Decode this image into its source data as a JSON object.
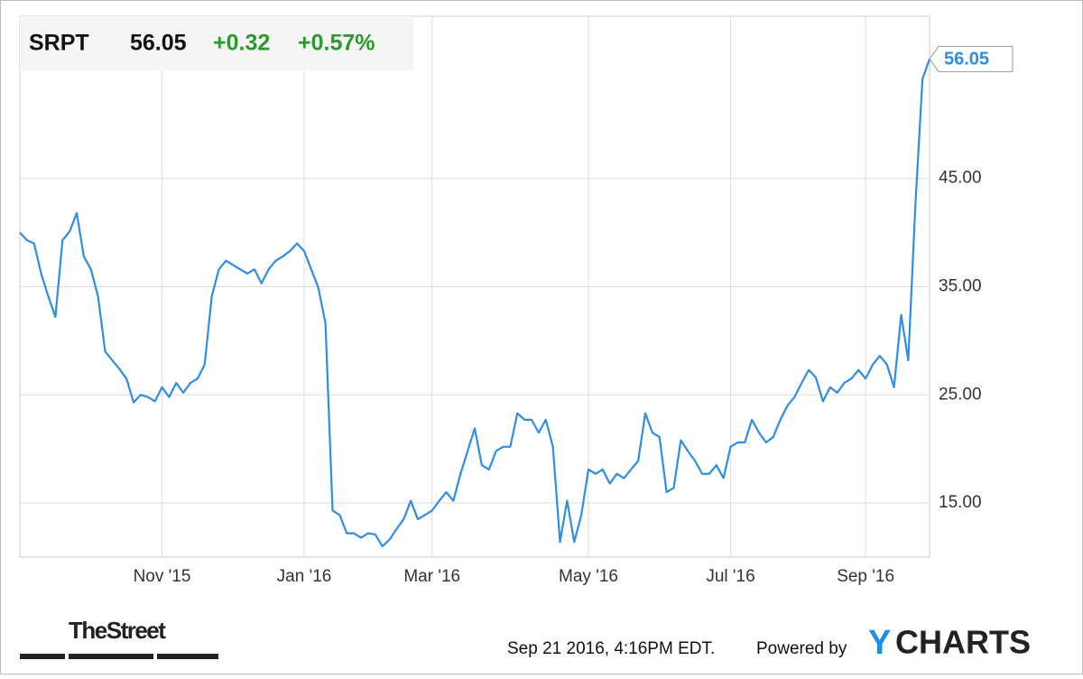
{
  "chart_data": {
    "type": "line",
    "header": {
      "symbol": "SRPT",
      "price": "56.05",
      "change": "+0.32",
      "change_pct": "+0.57%"
    },
    "categories": [
      null,
      null,
      null,
      null,
      null,
      null,
      null,
      null,
      null,
      null,
      null,
      null,
      null,
      null,
      null,
      null,
      null,
      null,
      null,
      null,
      "Nov '15",
      null,
      null,
      null,
      null,
      null,
      null,
      null,
      null,
      null,
      null,
      null,
      null,
      null,
      null,
      null,
      null,
      null,
      null,
      null,
      "Jan '16",
      null,
      null,
      null,
      null,
      null,
      null,
      null,
      null,
      null,
      null,
      null,
      null,
      null,
      null,
      null,
      null,
      null,
      "Mar '16",
      null,
      null,
      null,
      null,
      null,
      null,
      null,
      null,
      null,
      null,
      null,
      null,
      null,
      null,
      null,
      null,
      null,
      null,
      null,
      null,
      null,
      "May '16",
      null,
      null,
      null,
      null,
      null,
      null,
      null,
      null,
      null,
      null,
      null,
      null,
      null,
      null,
      null,
      null,
      null,
      null,
      null,
      "Jul '16",
      null,
      null,
      null,
      null,
      null,
      null,
      null,
      null,
      null,
      null,
      null,
      null,
      null,
      null,
      null,
      null,
      null,
      null,
      "Sep '16",
      null,
      null,
      null,
      null,
      null,
      null,
      null,
      null,
      null
    ],
    "series": [
      {
        "name": "SRPT",
        "color": "#2f8de4",
        "values": [
          40.0,
          39.3,
          39.0,
          36.2,
          34.1,
          32.2,
          39.3,
          40.1,
          41.8,
          37.8,
          36.6,
          34.1,
          29.0,
          28.2,
          27.4,
          26.5,
          24.3,
          25.0,
          24.8,
          24.4,
          25.7,
          24.8,
          26.1,
          25.2,
          26.1,
          26.5,
          27.8,
          34.1,
          36.6,
          37.4,
          37.0,
          36.6,
          36.2,
          36.6,
          35.3,
          36.6,
          37.4,
          37.8,
          38.3,
          39.0,
          38.3,
          36.6,
          34.9,
          31.6,
          14.3,
          13.9,
          12.2,
          12.2,
          11.8,
          12.2,
          12.1,
          11.0,
          11.6,
          12.6,
          13.5,
          15.2,
          13.5,
          13.9,
          14.3,
          15.2,
          16.0,
          15.2,
          17.7,
          19.8,
          21.9,
          18.5,
          18.1,
          19.8,
          20.2,
          20.2,
          23.3,
          22.7,
          22.7,
          21.5,
          22.7,
          20.2,
          11.4,
          15.2,
          11.4,
          13.9,
          18.1,
          17.7,
          18.1,
          16.8,
          17.7,
          17.3,
          18.1,
          18.9,
          23.3,
          21.5,
          21.1,
          16.0,
          16.4,
          20.8,
          19.8,
          18.9,
          17.7,
          17.7,
          18.5,
          17.3,
          20.2,
          20.6,
          20.6,
          22.7,
          21.5,
          20.6,
          21.1,
          22.7,
          24.0,
          24.8,
          26.1,
          27.3,
          26.6,
          24.4,
          25.7,
          25.2,
          26.1,
          26.5,
          27.3,
          26.5,
          27.8,
          28.6,
          27.8,
          25.7,
          32.4,
          28.2,
          42.5,
          54.2,
          56.05
        ]
      }
    ],
    "ylim": [
      10,
      60
    ],
    "yticks": [
      {
        "value": 15,
        "label": "15.00"
      },
      {
        "value": 25,
        "label": "25.00"
      },
      {
        "value": 35,
        "label": "35.00"
      },
      {
        "value": 45,
        "label": "45.00"
      }
    ],
    "grid": true,
    "footer": {
      "publisher": "TheStreet",
      "timestamp": "Sep 21 2016, 4:16PM EDT.",
      "powered": "Powered by",
      "brand_y": "Y",
      "brand_rest": "CHARTS"
    }
  }
}
